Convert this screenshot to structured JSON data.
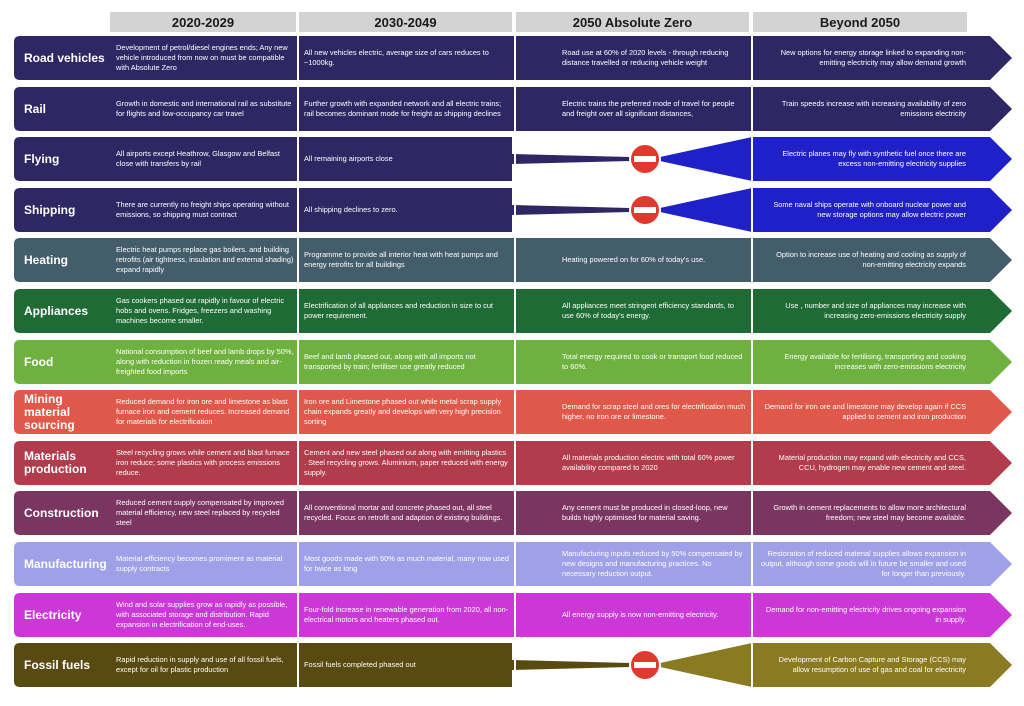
{
  "headers": [
    "2020-2029",
    "2030-2049",
    "2050 Absolute Zero",
    "Beyond 2050"
  ],
  "rows": [
    {
      "label": "Road vehicles",
      "color": "#2e2764",
      "kind": "normal",
      "c1": "Development of petrol/diesel engines ends; Any new vehicle introduced from now on must be compatible with Absolute Zero",
      "c2": "All new vehicles electric, average size of cars reduces to ~1000kg.",
      "c3": "Road use at 60% of 2020 levels - through reducing distance travelled or reducing vehicle weight",
      "c4": "New options for energy storage linked to expanding non-emitting electricity may allow demand growth"
    },
    {
      "label": "Rail",
      "color": "#2e2764",
      "kind": "normal",
      "c1": "Growth in domestic and international rail as substitute for flights and low-occupancy car travel",
      "c2": "Further growth with expanded network and all electric trains; rail becomes dominant mode for freight as shipping declines",
      "c3": "Electric trains the preferred mode of travel for people and freight over all significant distances,",
      "c4": "Train speeds increase with increasing availability of zero emissions electricity"
    },
    {
      "label": "Flying",
      "color": "#2e2764",
      "kind": "stop",
      "color2": "#2020c8",
      "c1": "All airports except Heathrow, Glasgow and Belfast close with transfers by rail",
      "c2": "All remaining airports close",
      "c3": "",
      "c4": "Electric planes may fly with synthetic fuel once there are excess non-emitting electricity supplies"
    },
    {
      "label": "Shipping",
      "color": "#2e2764",
      "kind": "stop",
      "color2": "#2020c8",
      "c1": "There are currently no freight ships operating without emissions, so shipping must contract",
      "c2": "All shipping declines to zero.",
      "c3": "",
      "c4": "Some naval ships operate with onboard nuclear power and new storage options may allow electric power"
    },
    {
      "label": "Heating",
      "color": "#435d6b",
      "kind": "normal",
      "c1": "Electric heat pumps replace gas boilers. and building retrofits (air tightness, insulation and external shading) expand rapidly",
      "c2": "Programme to provide all interior heat with heat pumps and energy retrofits for all buildings",
      "c3": "Heating powered on for 60% of today's use.",
      "c4": "Option to increase use of heating and cooling as supply of non-emitting electricity expands"
    },
    {
      "label": "Appliances",
      "color": "#1f6b35",
      "kind": "normal",
      "c1": "Gas cookers phased out rapidly in favour of electric hobs and ovens. Fridges, freezers and washing machines become smaller.",
      "c2": "Electrification of all appliances and reduction in size to cut power requirement.",
      "c3": "All appliances meet stringent efficiency standards, to use 60% of today's energy.",
      "c4": "Use , number and size of appliances may increase with increasing zero-emissions electricity supply"
    },
    {
      "label": "Food",
      "color": "#6fb13e",
      "kind": "normal",
      "c1": "National consumption of beef and lamb drops by 50%, along with reduction in frozen ready meals and air-freighted food imports",
      "c2": "Beef and lamb phased out, along with all imports not transported by train; fertiliser use greatly reduced",
      "c3": "Total energy required to cook or transport food reduced to 60%.",
      "c4": "Energy available for fertilising, transporting and cooking increases with zero-emissions electricity"
    },
    {
      "label": "Mining material sourcing",
      "color": "#e0584a",
      "kind": "normal",
      "c1": "Reduced demand for iron ore and limestone as blast furnace iron and cement reduces. Increased demand for materials for electrification",
      "c2": "Iron ore and Limestone phased out while metal scrap supply chain expands greatly and develops with very high precision sorting",
      "c3": "Demand for scrap steel and ores for electrification much higher, no iron ore or limestone.",
      "c4": "Demand for iron ore and limestone may develop again if CCS applied to cement and iron production"
    },
    {
      "label": "Materials production",
      "color": "#b03c4c",
      "kind": "normal",
      "c1": "Steel recycling grows while cement and blast furnace iron reduce; some plastics with process emissions reduce.",
      "c2": "Cement and new steel phased out along with emitting plastics . Steel recycling grows. Aluminium, paper reduced with energy supply.",
      "c3": "All materials production electric with total 60% power availability compared to 2020",
      "c4": "Material production may expand with electricity and CCS, CCU, hydrogen may enable new cement and steel."
    },
    {
      "label": "Construction",
      "color": "#7a3660",
      "kind": "normal",
      "c1": "Reduced cement supply compensated by improved material efficiency, new steel replaced by recycled steel",
      "c2": "All conventional mortar and concrete phased out, all steel recycled. Focus on retrofit and adaption of existing buildings.",
      "c3": "Any cement must be produced in closed-loop, new builds highly optimised for material saving.",
      "c4": "Growth in cement replacements to allow more architectural freedom; new steel may become available."
    },
    {
      "label": "Manufacturing",
      "color": "#9ea0e8",
      "kind": "normal",
      "c1": "Material efficiency becomes promiment as material supply contracts",
      "c2": "Most goods made with 50% as much material, many now used for twice as long",
      "c3": "Manufacturing inputs reduced by 50% compensated by new designs and manufacturing practices. No necessary reduction output.",
      "c4": "Restoration of reduced material supplies allows expansion in output, although some goods will in future be smaller and used for longer than previously."
    },
    {
      "label": "Electricity",
      "color": "#cc38d8",
      "kind": "normal",
      "c1": "Wind and solar supplies grow as rapidly as possible, with associated storage and distribution. Rapid expansion in electrification of end-uses.",
      "c2": "Four-fold increase in renewable generation from 2020, all non-electrical motors and heaters phased out.",
      "c3": "All energy supply is now non-emitting electricity.",
      "c4": "Demand for non-emitting electricity drives ongoing expansion in supply."
    },
    {
      "label": "Fossil fuels",
      "color": "#584a10",
      "kind": "stop",
      "color2": "#8a7a22",
      "c1": "Rapid reduction in supply and use of all fossil fuels, except for oil for plastic production",
      "c2": "Fossil fuels completed phased out",
      "c3": "",
      "c4": "Development of Carbon Capture and Storage (CCS) may allow resumption of use of gas and coal for electricity"
    }
  ]
}
